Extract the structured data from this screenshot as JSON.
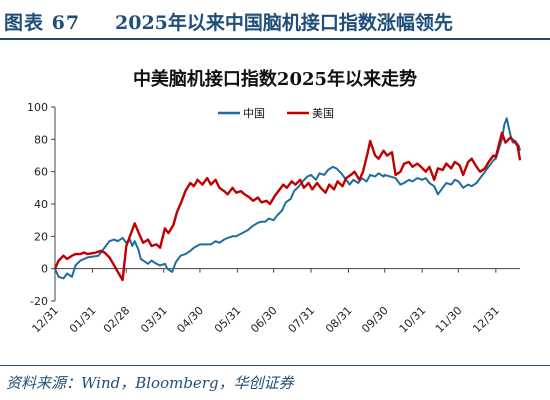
{
  "header": {
    "figure_number": "图表 67",
    "figure_title": "2025年以来中国脑机接口指数涨幅领先"
  },
  "source_note": "资料来源：Wind，Bloomberg，华创证券",
  "chart_data": {
    "type": "line",
    "title": "中美脑机接口指数2025年以来走势",
    "xlabel": "",
    "ylabel": "",
    "ylim": [
      -20,
      100
    ],
    "yticks": [
      -20,
      0,
      20,
      40,
      60,
      80,
      100
    ],
    "grid": false,
    "legend_position": "top-center",
    "x_domain": [
      "2024-12-31",
      "2026-01-20"
    ],
    "x_tick_dates": [
      "2024-12-31",
      "2025-01-31",
      "2025-02-28",
      "2025-03-31",
      "2025-04-30",
      "2025-05-31",
      "2025-06-30",
      "2025-07-31",
      "2025-08-31",
      "2025-09-30",
      "2025-10-31",
      "2025-11-30",
      "2025-12-31"
    ],
    "x_tick_labels": [
      "12/31",
      "01/31",
      "02/28",
      "03/31",
      "04/30",
      "05/31",
      "06/30",
      "07/31",
      "08/31",
      "09/30",
      "10/31",
      "11/30",
      "12/31"
    ],
    "series": [
      {
        "name": "中国",
        "color": "#1f6d9e",
        "points": [
          [
            "2024-12-31",
            0
          ],
          [
            "2025-01-03",
            -5
          ],
          [
            "2025-01-07",
            -6
          ],
          [
            "2025-01-10",
            -3
          ],
          [
            "2025-01-14",
            -5
          ],
          [
            "2025-01-17",
            2
          ],
          [
            "2025-01-21",
            5
          ],
          [
            "2025-01-24",
            6
          ],
          [
            "2025-01-27",
            7
          ],
          [
            "2025-02-05",
            8
          ],
          [
            "2025-02-10",
            13
          ],
          [
            "2025-02-14",
            17
          ],
          [
            "2025-02-18",
            18
          ],
          [
            "2025-02-21",
            17
          ],
          [
            "2025-02-25",
            19
          ],
          [
            "2025-02-28",
            16
          ],
          [
            "2025-03-03",
            18
          ],
          [
            "2025-03-05",
            14
          ],
          [
            "2025-03-07",
            17
          ],
          [
            "2025-03-10",
            12
          ],
          [
            "2025-03-12",
            6
          ],
          [
            "2025-03-14",
            5
          ],
          [
            "2025-03-18",
            3
          ],
          [
            "2025-03-21",
            5
          ],
          [
            "2025-03-25",
            3
          ],
          [
            "2025-03-28",
            2
          ],
          [
            "2025-04-01",
            3
          ],
          [
            "2025-04-03",
            0
          ],
          [
            "2025-04-07",
            -2
          ],
          [
            "2025-04-10",
            4
          ],
          [
            "2025-04-14",
            8
          ],
          [
            "2025-04-18",
            9
          ],
          [
            "2025-04-22",
            11
          ],
          [
            "2025-04-25",
            13
          ],
          [
            "2025-04-30",
            15
          ],
          [
            "2025-05-06",
            15
          ],
          [
            "2025-05-09",
            15
          ],
          [
            "2025-05-13",
            17
          ],
          [
            "2025-05-16",
            16
          ],
          [
            "2025-05-20",
            18
          ],
          [
            "2025-05-23",
            19
          ],
          [
            "2025-05-27",
            20
          ],
          [
            "2025-05-30",
            20
          ],
          [
            "2025-06-04",
            22
          ],
          [
            "2025-06-09",
            24
          ],
          [
            "2025-06-12",
            26
          ],
          [
            "2025-06-16",
            28
          ],
          [
            "2025-06-19",
            29
          ],
          [
            "2025-06-23",
            29
          ],
          [
            "2025-06-26",
            31
          ],
          [
            "2025-06-30",
            30
          ],
          [
            "2025-07-03",
            33
          ],
          [
            "2025-07-07",
            36
          ],
          [
            "2025-07-10",
            41
          ],
          [
            "2025-07-14",
            43
          ],
          [
            "2025-07-17",
            48
          ],
          [
            "2025-07-21",
            51
          ],
          [
            "2025-07-24",
            54
          ],
          [
            "2025-07-28",
            57
          ],
          [
            "2025-07-31",
            58
          ],
          [
            "2025-08-04",
            55
          ],
          [
            "2025-08-07",
            59
          ],
          [
            "2025-08-11",
            58
          ],
          [
            "2025-08-14",
            61
          ],
          [
            "2025-08-18",
            63
          ],
          [
            "2025-08-21",
            62
          ],
          [
            "2025-08-25",
            59
          ],
          [
            "2025-08-28",
            56
          ],
          [
            "2025-09-01",
            52
          ],
          [
            "2025-09-04",
            55
          ],
          [
            "2025-09-08",
            53
          ],
          [
            "2025-09-11",
            56
          ],
          [
            "2025-09-15",
            54
          ],
          [
            "2025-09-18",
            58
          ],
          [
            "2025-09-22",
            57
          ],
          [
            "2025-09-25",
            59
          ],
          [
            "2025-09-29",
            57
          ],
          [
            "2025-09-30",
            58
          ],
          [
            "2025-10-09",
            56
          ],
          [
            "2025-10-13",
            52
          ],
          [
            "2025-10-16",
            53
          ],
          [
            "2025-10-20",
            55
          ],
          [
            "2025-10-23",
            54
          ],
          [
            "2025-10-27",
            56
          ],
          [
            "2025-10-31",
            55
          ],
          [
            "2025-11-03",
            56
          ],
          [
            "2025-11-06",
            53
          ],
          [
            "2025-11-10",
            51
          ],
          [
            "2025-11-13",
            46
          ],
          [
            "2025-11-17",
            50
          ],
          [
            "2025-11-20",
            53
          ],
          [
            "2025-11-24",
            52
          ],
          [
            "2025-11-27",
            55
          ],
          [
            "2025-11-30",
            54
          ],
          [
            "2025-12-04",
            50
          ],
          [
            "2025-12-08",
            52
          ],
          [
            "2025-12-11",
            51
          ],
          [
            "2025-12-15",
            53
          ],
          [
            "2025-12-18",
            56
          ],
          [
            "2025-12-22",
            60
          ],
          [
            "2025-12-25",
            63
          ],
          [
            "2025-12-29",
            67
          ],
          [
            "2025-12-31",
            68
          ],
          [
            "2026-01-05",
            80
          ],
          [
            "2026-01-07",
            89
          ],
          [
            "2026-01-09",
            93
          ],
          [
            "2026-01-12",
            83
          ],
          [
            "2026-01-14",
            78
          ],
          [
            "2026-01-16",
            79
          ],
          [
            "2026-01-19",
            76
          ],
          [
            "2026-01-20",
            73
          ]
        ]
      },
      {
        "name": "美国",
        "color": "#c00000",
        "points": [
          [
            "2024-12-31",
            0
          ],
          [
            "2025-01-03",
            5
          ],
          [
            "2025-01-07",
            8
          ],
          [
            "2025-01-10",
            6
          ],
          [
            "2025-01-14",
            8
          ],
          [
            "2025-01-17",
            9
          ],
          [
            "2025-01-21",
            9
          ],
          [
            "2025-01-24",
            10
          ],
          [
            "2025-01-27",
            9
          ],
          [
            "2025-02-03",
            10
          ],
          [
            "2025-02-07",
            11
          ],
          [
            "2025-02-10",
            10
          ],
          [
            "2025-02-14",
            7
          ],
          [
            "2025-02-18",
            2
          ],
          [
            "2025-02-21",
            -2
          ],
          [
            "2025-02-25",
            -7
          ],
          [
            "2025-02-28",
            14
          ],
          [
            "2025-03-04",
            22
          ],
          [
            "2025-03-07",
            28
          ],
          [
            "2025-03-11",
            21
          ],
          [
            "2025-03-14",
            16
          ],
          [
            "2025-03-18",
            18
          ],
          [
            "2025-03-21",
            14
          ],
          [
            "2025-03-25",
            15
          ],
          [
            "2025-03-28",
            13
          ],
          [
            "2025-04-01",
            25
          ],
          [
            "2025-04-04",
            22
          ],
          [
            "2025-04-08",
            27
          ],
          [
            "2025-04-11",
            35
          ],
          [
            "2025-04-15",
            42
          ],
          [
            "2025-04-18",
            48
          ],
          [
            "2025-04-22",
            53
          ],
          [
            "2025-04-25",
            51
          ],
          [
            "2025-04-28",
            55
          ],
          [
            "2025-05-02",
            52
          ],
          [
            "2025-05-06",
            56
          ],
          [
            "2025-05-09",
            52
          ],
          [
            "2025-05-13",
            55
          ],
          [
            "2025-05-16",
            50
          ],
          [
            "2025-05-20",
            48
          ],
          [
            "2025-05-23",
            46
          ],
          [
            "2025-05-27",
            50
          ],
          [
            "2025-05-30",
            47
          ],
          [
            "2025-06-03",
            48
          ],
          [
            "2025-06-06",
            46
          ],
          [
            "2025-06-10",
            44
          ],
          [
            "2025-06-13",
            42
          ],
          [
            "2025-06-17",
            44
          ],
          [
            "2025-06-20",
            41
          ],
          [
            "2025-06-24",
            42
          ],
          [
            "2025-06-27",
            40
          ],
          [
            "2025-07-01",
            45
          ],
          [
            "2025-07-04",
            48
          ],
          [
            "2025-07-08",
            52
          ],
          [
            "2025-07-11",
            50
          ],
          [
            "2025-07-15",
            54
          ],
          [
            "2025-07-18",
            52
          ],
          [
            "2025-07-22",
            55
          ],
          [
            "2025-07-25",
            50
          ],
          [
            "2025-07-29",
            53
          ],
          [
            "2025-08-01",
            49
          ],
          [
            "2025-08-05",
            53
          ],
          [
            "2025-08-08",
            50
          ],
          [
            "2025-08-12",
            47
          ],
          [
            "2025-08-15",
            52
          ],
          [
            "2025-08-19",
            49
          ],
          [
            "2025-08-22",
            54
          ],
          [
            "2025-08-26",
            51
          ],
          [
            "2025-08-29",
            56
          ],
          [
            "2025-09-02",
            58
          ],
          [
            "2025-09-05",
            60
          ],
          [
            "2025-09-09",
            55
          ],
          [
            "2025-09-12",
            60
          ],
          [
            "2025-09-16",
            72
          ],
          [
            "2025-09-18",
            79
          ],
          [
            "2025-09-22",
            70
          ],
          [
            "2025-09-25",
            68
          ],
          [
            "2025-09-29",
            73
          ],
          [
            "2025-10-02",
            70
          ],
          [
            "2025-10-06",
            72
          ],
          [
            "2025-10-09",
            58
          ],
          [
            "2025-10-13",
            60
          ],
          [
            "2025-10-16",
            65
          ],
          [
            "2025-10-20",
            66
          ],
          [
            "2025-10-23",
            63
          ],
          [
            "2025-10-27",
            65
          ],
          [
            "2025-10-30",
            63
          ],
          [
            "2025-11-03",
            60
          ],
          [
            "2025-11-06",
            63
          ],
          [
            "2025-11-10",
            55
          ],
          [
            "2025-11-13",
            62
          ],
          [
            "2025-11-17",
            61
          ],
          [
            "2025-11-20",
            65
          ],
          [
            "2025-11-24",
            62
          ],
          [
            "2025-11-27",
            66
          ],
          [
            "2025-12-01",
            64
          ],
          [
            "2025-12-04",
            58
          ],
          [
            "2025-12-08",
            66
          ],
          [
            "2025-12-11",
            68
          ],
          [
            "2025-12-15",
            63
          ],
          [
            "2025-12-18",
            60
          ],
          [
            "2025-12-22",
            62
          ],
          [
            "2025-12-25",
            66
          ],
          [
            "2025-12-29",
            70
          ],
          [
            "2025-12-31",
            69
          ],
          [
            "2026-01-05",
            84
          ],
          [
            "2026-01-08",
            78
          ],
          [
            "2026-01-12",
            81
          ],
          [
            "2026-01-15",
            79
          ],
          [
            "2026-01-18",
            76
          ],
          [
            "2026-01-20",
            67
          ]
        ]
      }
    ]
  }
}
